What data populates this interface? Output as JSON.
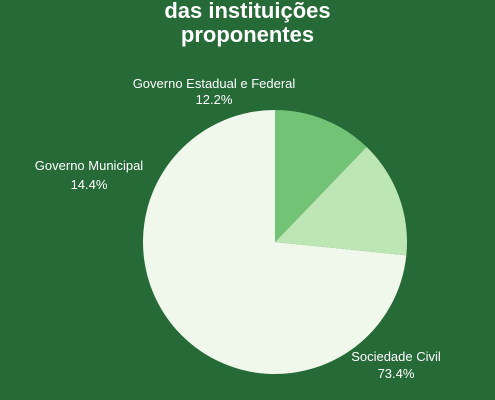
{
  "title_lines": [
    "das instituições",
    "proponentes"
  ],
  "chart_data": {
    "type": "pie",
    "title": "das instituições proponentes",
    "start_angle_deg": 0,
    "direction": "counterclockwise",
    "slices": [
      {
        "label": "Sociedade Civil",
        "value": 73.4,
        "value_text": "73.4%",
        "color": "#eff8ea"
      },
      {
        "label": "Governo Municipal",
        "value": 14.4,
        "value_text": "14.4%",
        "color": "#bde6b5"
      },
      {
        "label": "Governo Estadual e Federal",
        "value": 12.2,
        "value_text": "12.2%",
        "color": "#72c376"
      }
    ]
  }
}
